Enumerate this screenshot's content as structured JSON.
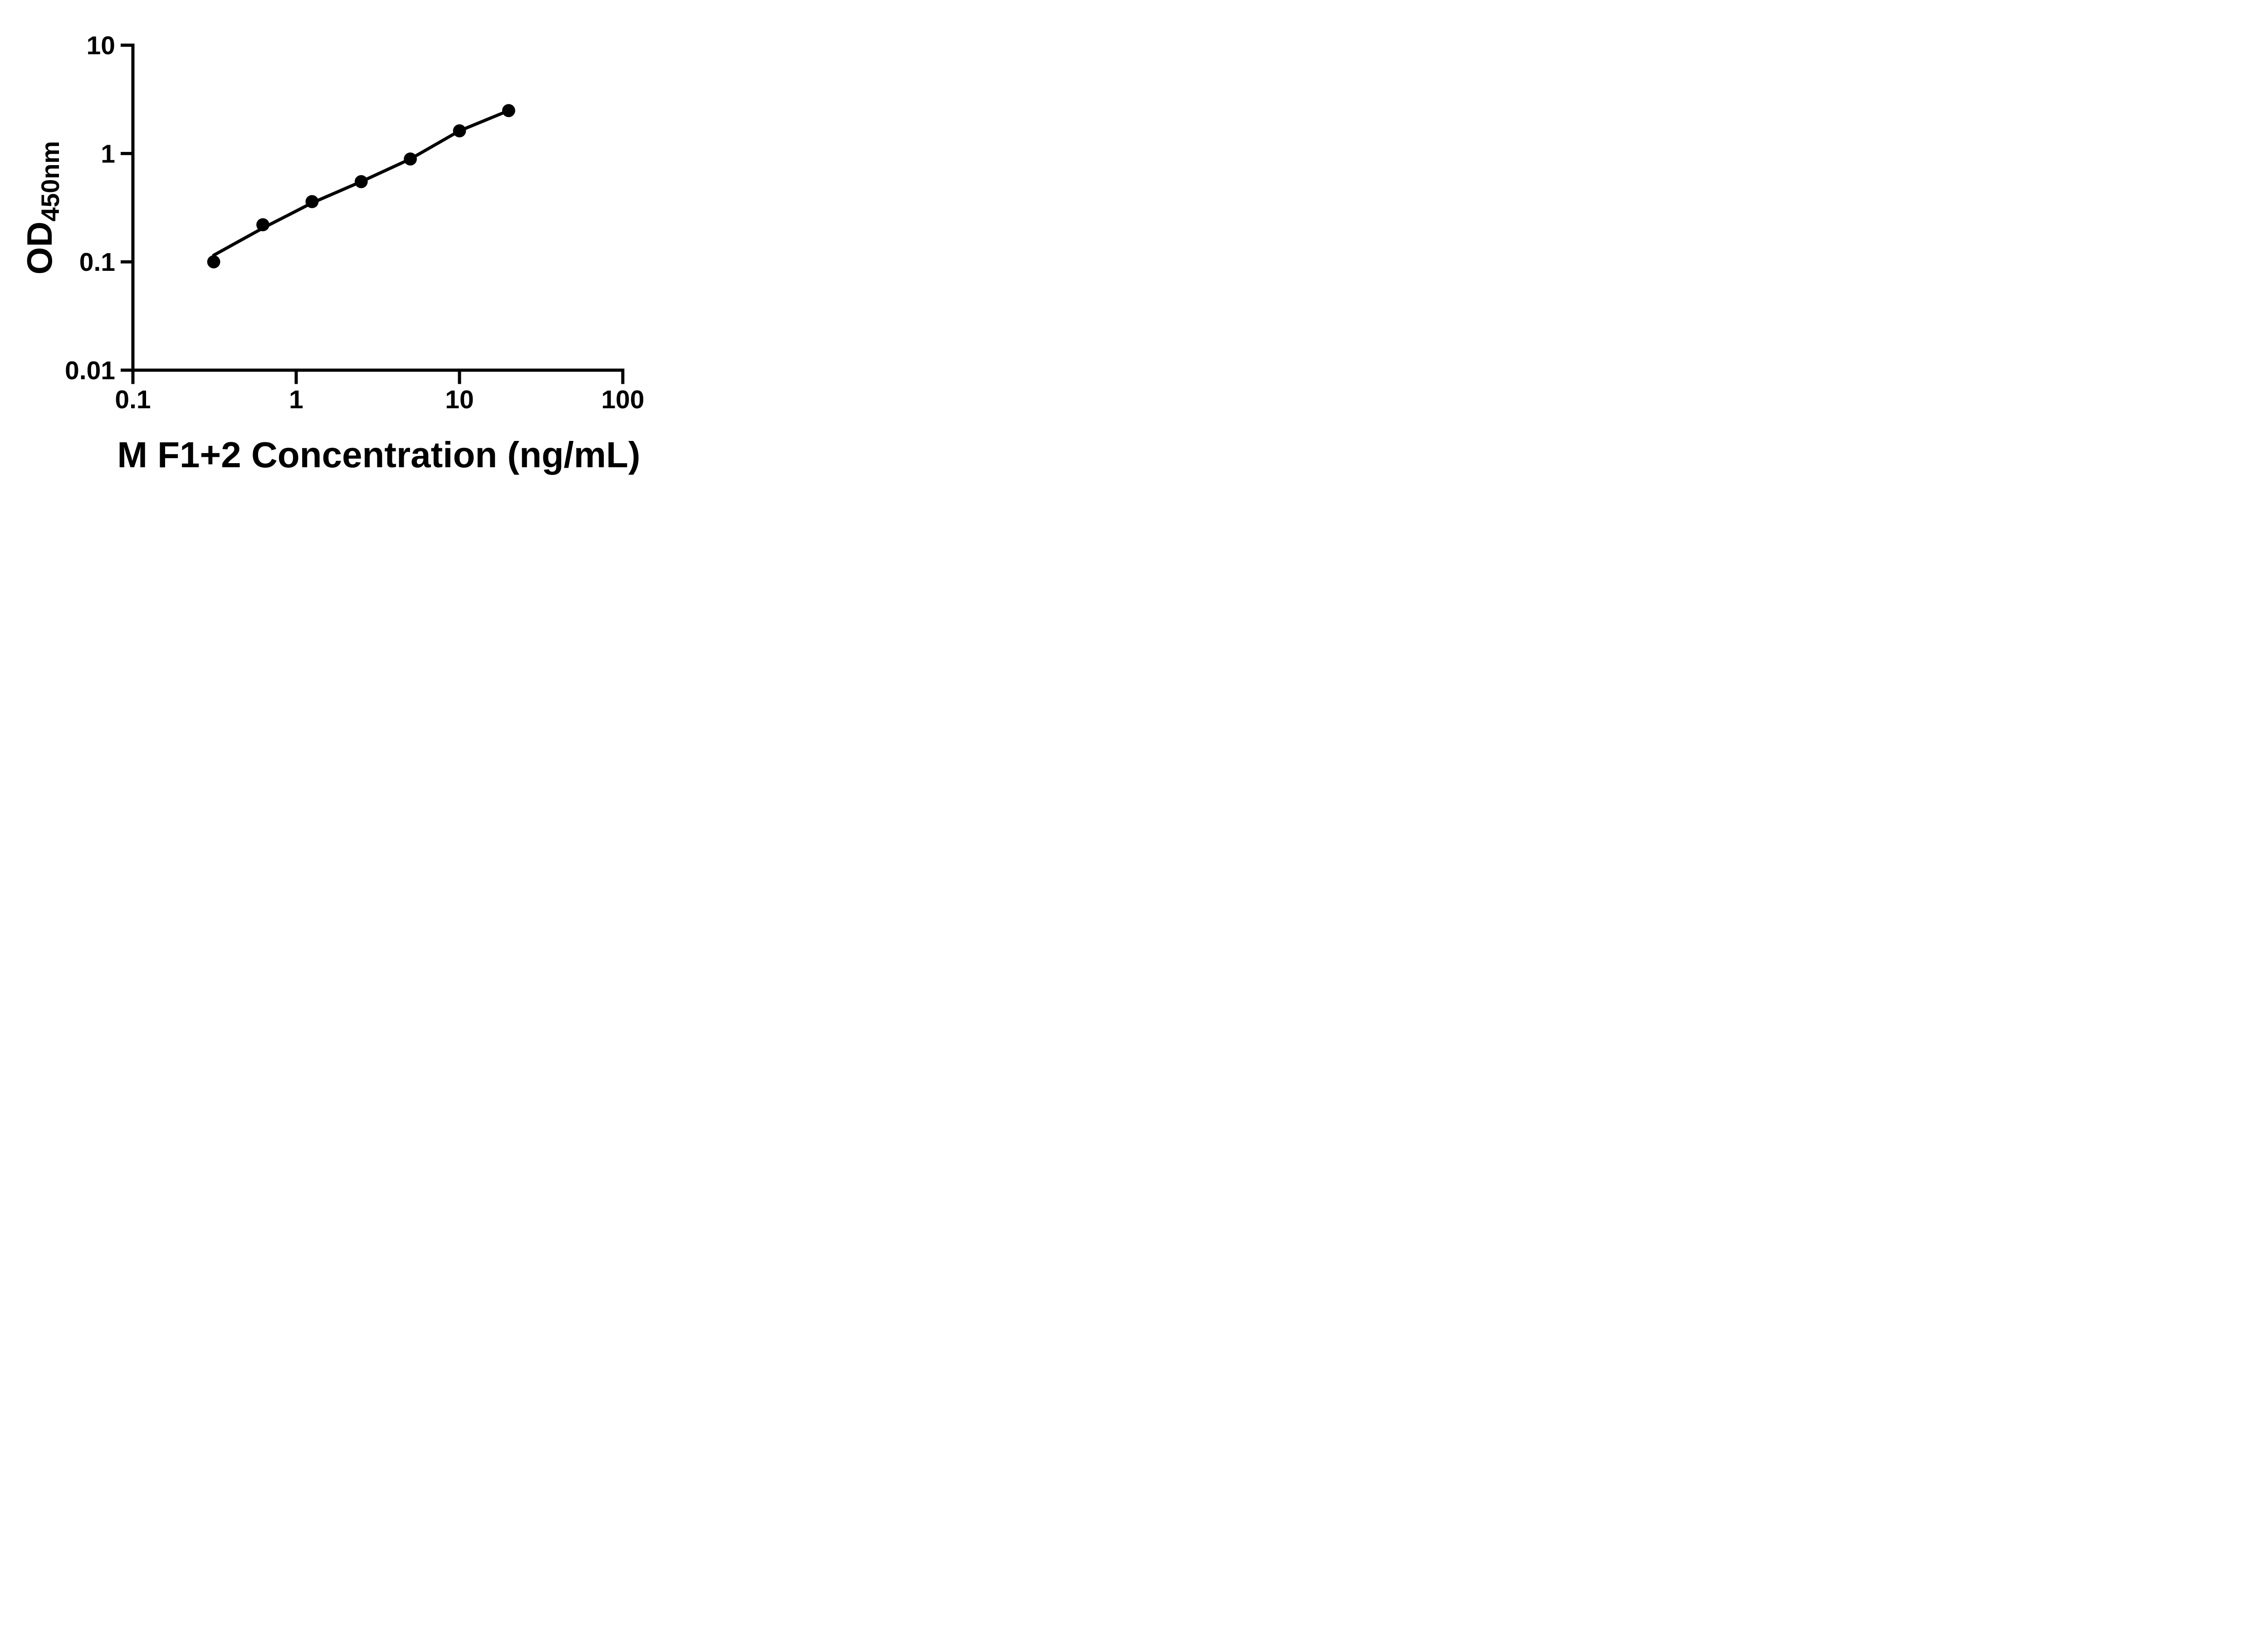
{
  "figure": {
    "background_color": "#ffffff",
    "foreground_color": "#000000",
    "description": "ELISA standard curve scatter plot with fitted line"
  },
  "chart_data": {
    "type": "scatter",
    "title": "",
    "xlabel": "M F1+2 Concentration (ng/mL)",
    "ylabel_main": "OD",
    "ylabel_subscript": "450nm",
    "x_scale": "log",
    "y_scale": "log",
    "xlim": [
      0.1,
      100
    ],
    "ylim": [
      0.01,
      10
    ],
    "grid": false,
    "legend_visible": false,
    "x_ticks": [
      0.1,
      1,
      10,
      100
    ],
    "x_tick_labels": [
      "0.1",
      "1",
      "10",
      "100"
    ],
    "y_ticks": [
      10,
      1,
      0.1,
      0.01
    ],
    "y_tick_labels": [
      "10",
      "1",
      "0.1",
      "0.01"
    ],
    "series": [
      {
        "name": "standard-curve-points",
        "marker": "filled-circle",
        "color": "#000000",
        "x": [
          0.3125,
          0.625,
          1.25,
          2.5,
          5,
          10,
          20
        ],
        "y": [
          0.1,
          0.22,
          0.36,
          0.55,
          0.89,
          1.62,
          2.49
        ]
      }
    ],
    "fit_line": {
      "name": "fitted-standard-curve",
      "color": "#000000",
      "x": [
        0.3125,
        0.625,
        1.25,
        2.5,
        5,
        10,
        20
      ],
      "y": [
        0.115,
        0.205,
        0.35,
        0.55,
        0.89,
        1.62,
        2.49
      ]
    }
  }
}
